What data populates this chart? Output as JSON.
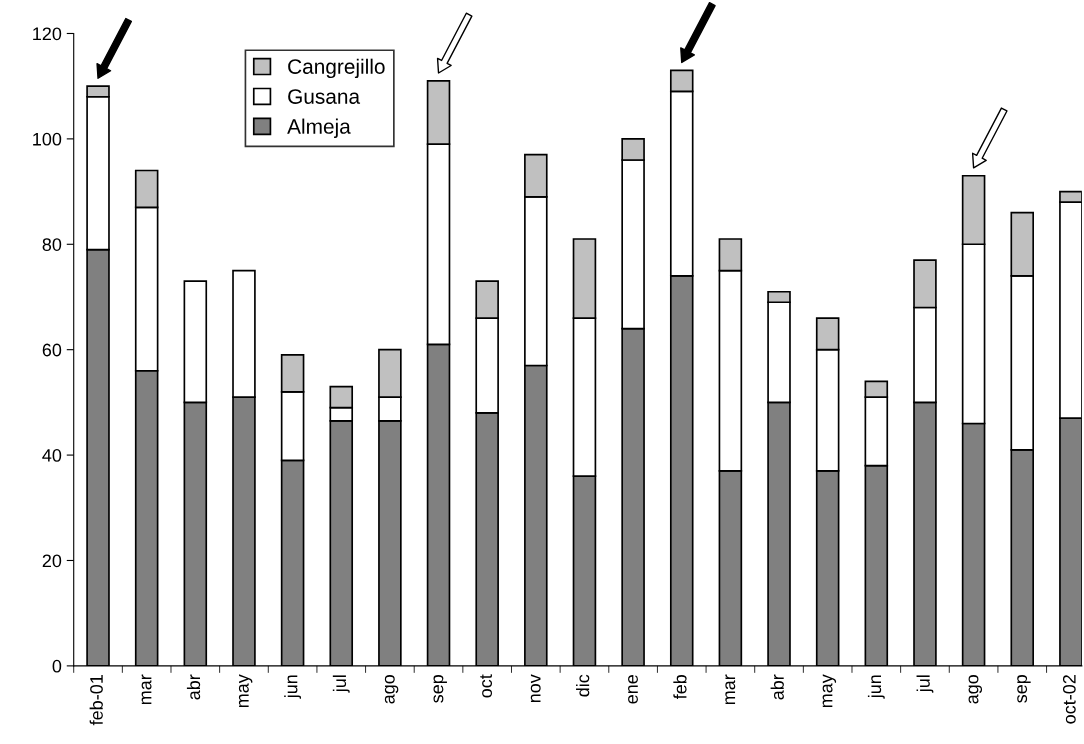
{
  "chart_data": {
    "type": "bar",
    "stacked": true,
    "categories": [
      "feb-01",
      "mar",
      "abr",
      "may",
      "jun",
      "jul",
      "ago",
      "sep",
      "oct",
      "nov",
      "dic",
      "ene",
      "feb",
      "mar",
      "abr",
      "may",
      "jun",
      "jul",
      "ago",
      "sep",
      "oct-02"
    ],
    "series": [
      {
        "name": "Almeja",
        "color": "#808080",
        "values": [
          79,
          56,
          50,
          51,
          39,
          46.5,
          46.5,
          61,
          48,
          57,
          36,
          64,
          74,
          37,
          50,
          37,
          38,
          50,
          46,
          41,
          47
        ]
      },
      {
        "name": "Gusana",
        "color": "#ffffff",
        "values": [
          29,
          31,
          23,
          24,
          13,
          2.5,
          4.5,
          38,
          18,
          32,
          30,
          32,
          35,
          38,
          19,
          23,
          13,
          18,
          34,
          33,
          41
        ]
      },
      {
        "name": "Cangrejillo",
        "color": "#c0c0c0",
        "values": [
          2,
          7,
          null,
          null,
          7,
          4,
          9,
          12,
          7,
          8,
          15,
          4,
          4,
          6,
          2,
          6,
          3,
          9,
          13,
          12,
          2
        ]
      }
    ],
    "ylim": [
      0,
      120
    ],
    "yticks": [
      0,
      20,
      40,
      60,
      80,
      100,
      120
    ],
    "grid": false,
    "legend": "top left"
  }
}
